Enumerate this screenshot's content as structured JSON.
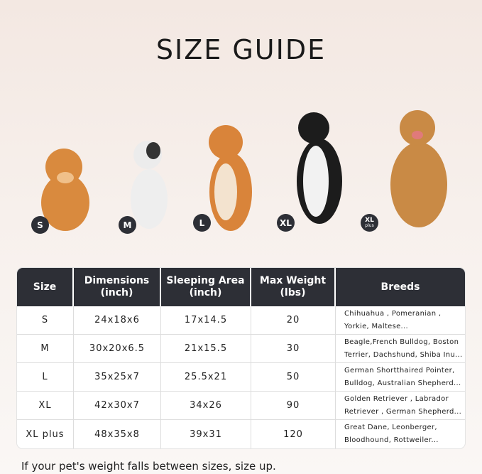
{
  "title": "SIZE GUIDE",
  "badges": [
    {
      "label": "S"
    },
    {
      "label": "M"
    },
    {
      "label": "L"
    },
    {
      "label": "XL"
    },
    {
      "label": "XL",
      "sub": "plus"
    }
  ],
  "table": {
    "headers": [
      "Size",
      "Dimensions (inch)",
      "Sleeping Area (inch)",
      "Max Weight (lbs)",
      "Breeds"
    ],
    "rows": [
      {
        "size": "S",
        "dimensions": "24x18x6",
        "sleeping_area": "17x14.5",
        "max_weight": "20",
        "breeds": "Chihuahua , Pomeranian , Yorkie, Maltese..."
      },
      {
        "size": "M",
        "dimensions": "30x20x6.5",
        "sleeping_area": "21x15.5",
        "max_weight": "30",
        "breeds": "Beagle,French Bulldog, Boston Terrier, Dachshund, Shiba Inu..."
      },
      {
        "size": "L",
        "dimensions": "35x25x7",
        "sleeping_area": "25.5x21",
        "max_weight": "50",
        "breeds": "German Shortthaired Pointer, Bulldog, Australian Shepherd..."
      },
      {
        "size": "XL",
        "dimensions": "42x30x7",
        "sleeping_area": "34x26",
        "max_weight": "90",
        "breeds": "Golden Retriever , Labrador Retriever , German Shepherd..."
      },
      {
        "size": "XL plus",
        "dimensions": "48x35x8",
        "sleeping_area": "39x31",
        "max_weight": "120",
        "breeds": "Great Dane, Leonberger, Bloodhound, Rottweiler..."
      }
    ]
  },
  "footer": "If your pet's weight falls between sizes, size up.",
  "colors": {
    "header_bg": "#2d2f36"
  }
}
